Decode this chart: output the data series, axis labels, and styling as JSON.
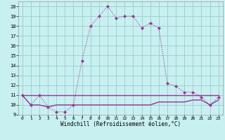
{
  "xlabel": "Windchill (Refroidissement éolien,°C)",
  "background_color": "#c8f0f0",
  "grid_color": "#98cccc",
  "line_color": "#993399",
  "x_values": [
    0,
    1,
    2,
    3,
    4,
    5,
    6,
    7,
    8,
    9,
    10,
    11,
    12,
    13,
    14,
    15,
    16,
    17,
    18,
    19,
    20,
    21,
    22,
    23
  ],
  "curve_main": [
    11,
    10,
    11,
    9.8,
    9.3,
    9.3,
    10,
    14.5,
    18,
    19,
    20,
    18.8,
    19,
    19,
    17.8,
    18.3,
    17.8,
    12.2,
    11.9,
    11.3,
    11.3,
    10.8,
    10,
    10.8
  ],
  "flat_high": [
    11,
    11,
    11,
    11,
    11,
    11,
    11,
    11,
    11,
    11,
    11,
    11,
    11,
    11,
    11,
    11,
    11,
    11,
    11,
    11,
    11,
    11,
    11,
    11
  ],
  "flat_low": [
    11,
    10,
    10,
    9.8,
    10,
    10,
    10,
    10,
    10,
    10,
    10,
    10,
    10,
    10,
    10,
    10,
    10.3,
    10.3,
    10.3,
    10.3,
    10.5,
    10.5,
    10,
    10.5
  ],
  "ylim": [
    9,
    20.5
  ],
  "xlim": [
    -0.5,
    23.5
  ],
  "yticks": [
    9,
    10,
    11,
    12,
    13,
    14,
    15,
    16,
    17,
    18,
    19,
    20
  ],
  "xticks": [
    0,
    1,
    2,
    3,
    4,
    5,
    6,
    7,
    8,
    9,
    10,
    11,
    12,
    13,
    14,
    15,
    16,
    17,
    18,
    19,
    20,
    21,
    22,
    23
  ]
}
